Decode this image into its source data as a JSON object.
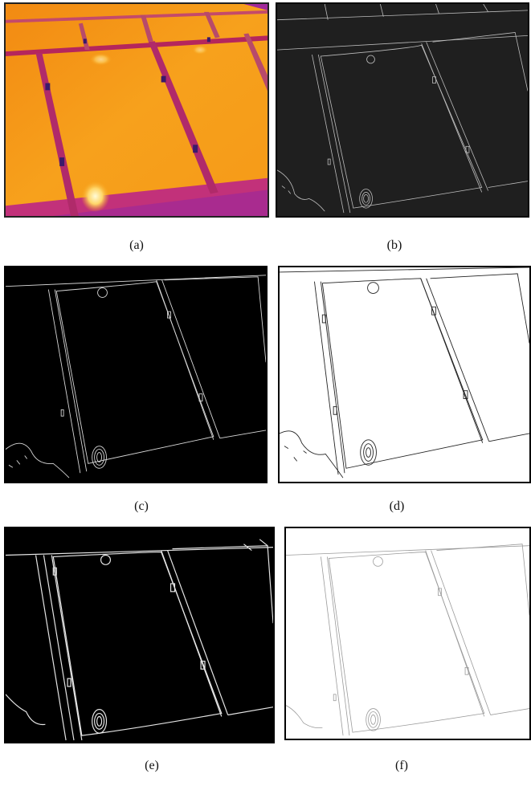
{
  "panels": [
    {
      "id": "a",
      "caption": "(a)",
      "style": "thermal"
    },
    {
      "id": "b",
      "caption": "(b)",
      "style": "gray-edges"
    },
    {
      "id": "c",
      "caption": "(c)",
      "style": "black-edges"
    },
    {
      "id": "d",
      "caption": "(d)",
      "style": "inverted-edges"
    },
    {
      "id": "e",
      "caption": "(e)",
      "style": "black-thick-edges"
    },
    {
      "id": "f",
      "caption": "(f)",
      "style": "light-edges"
    }
  ],
  "colors": {
    "thermal_panel": "#f7a21a",
    "thermal_gap": "#b5265c",
    "thermal_hot": "#fff2a8",
    "gray_bg": "#1f1f1f",
    "black_bg": "#000000",
    "white_bg": "#ffffff"
  }
}
